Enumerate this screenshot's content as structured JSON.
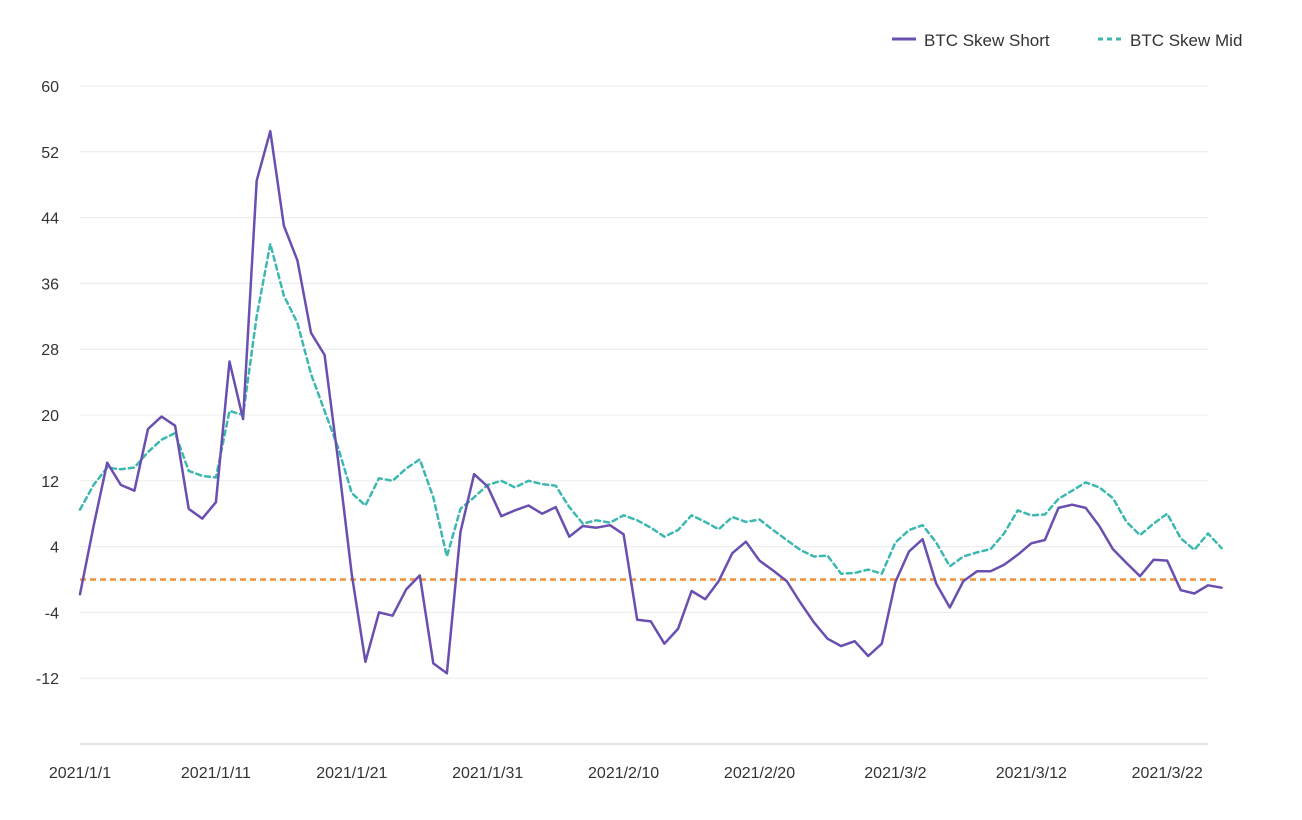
{
  "chart_data": {
    "type": "line",
    "title": "",
    "xlabel": "",
    "ylabel": "",
    "x_start": "2021-01-01",
    "x_end": "2021-03-25",
    "x_ticks": [
      "2021/1/1",
      "2021/1/11",
      "2021/1/21",
      "2021/1/31",
      "2021/2/10",
      "2021/2/20",
      "2021/3/2",
      "2021/3/12",
      "2021/3/22"
    ],
    "ylim": [
      -20,
      60
    ],
    "y_ticks": [
      "-12",
      "-4",
      "4",
      "12",
      "20",
      "28",
      "36",
      "44",
      "52",
      "60"
    ],
    "grid": true,
    "legend_position": "top-right",
    "reference_line": {
      "y": 0,
      "color": "#f0913a"
    },
    "series": [
      {
        "name": "BTC Skew Short",
        "color": "#6a4fb0",
        "style": "solid",
        "values": [
          -1.8,
          6.5,
          14.2,
          11.5,
          10.8,
          18.3,
          19.8,
          18.7,
          8.6,
          7.4,
          9.4,
          26.5,
          19.5,
          48.5,
          54.5,
          43.0,
          38.8,
          30.0,
          27.3,
          14.4,
          0.6,
          -10,
          -4,
          -4.4,
          -1.2,
          0.5,
          -10.2,
          -11.4,
          5.8,
          12.8,
          11.3,
          7.7,
          8.4,
          9.0,
          8.0,
          8.8,
          5.2,
          6.5,
          6.3,
          6.6,
          5.5,
          -4.9,
          -5.1,
          -7.8,
          -6.0,
          -1.4,
          -2.4,
          -0.2,
          3.2,
          4.6,
          2.3,
          1.1,
          -0.2,
          -2.8,
          -5.2,
          -7.2,
          -8.1,
          -7.5,
          -9.3,
          -7.8,
          -0.3,
          3.4,
          4.9,
          -0.5,
          -3.4,
          -0.2,
          1.0,
          1.0,
          1.8,
          3.0,
          4.4,
          4.8,
          8.7,
          9.1,
          8.7,
          6.5,
          3.7,
          2.0,
          0.4,
          2.4,
          2.3,
          -1.3,
          -1.7,
          -0.7,
          -1.0
        ]
      },
      {
        "name": "BTC Skew Mid",
        "color": "#3db8b0",
        "style": "dashed",
        "values": [
          8.5,
          11.5,
          13.6,
          13.4,
          13.6,
          15.5,
          17.0,
          17.8,
          13.2,
          12.6,
          12.4,
          20.5,
          20.0,
          32.0,
          40.8,
          34.5,
          31.2,
          25.0,
          20.5,
          16.0,
          10.5,
          9.0,
          12.3,
          12.0,
          13.5,
          14.6,
          10.0,
          2.8,
          8.6,
          10.0,
          11.5,
          12.0,
          11.2,
          12.0,
          11.6,
          11.4,
          8.8,
          6.8,
          7.2,
          6.9,
          7.8,
          7.2,
          6.3,
          5.2,
          6.0,
          7.8,
          7.0,
          6.1,
          7.6,
          7.0,
          7.3,
          6.0,
          4.8,
          3.6,
          2.8,
          2.9,
          0.7,
          0.8,
          1.2,
          0.7,
          4.5,
          6.0,
          6.6,
          4.5,
          1.6,
          2.8,
          3.3,
          3.7,
          5.6,
          8.4,
          7.8,
          7.9,
          9.8,
          10.8,
          11.8,
          11.2,
          9.9,
          7.0,
          5.4,
          6.8,
          8.0,
          5.0,
          3.6,
          5.6,
          3.8
        ]
      }
    ]
  }
}
